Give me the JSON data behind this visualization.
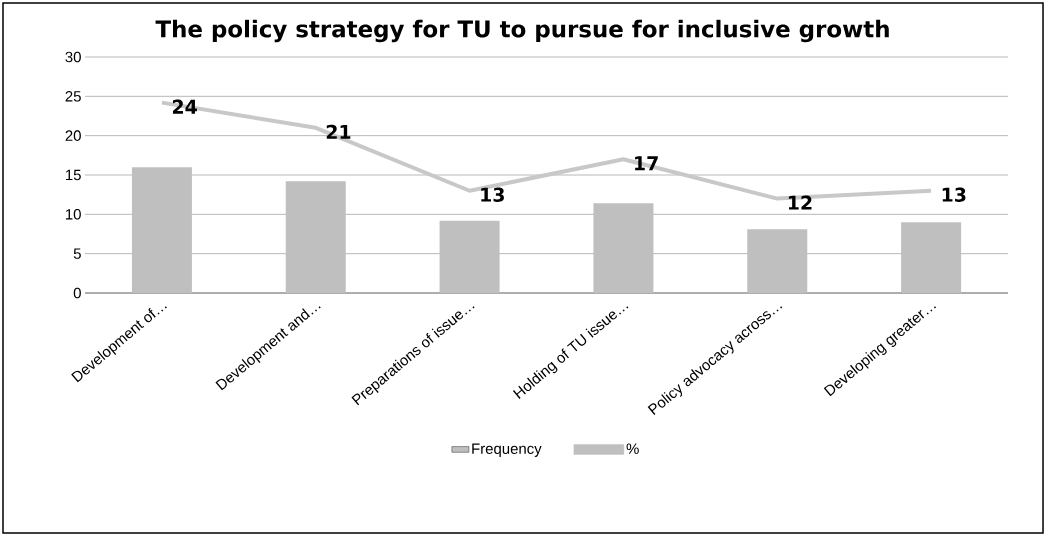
{
  "chart_data": {
    "type": "bar",
    "title": "The policy strategy for TU to pursue for inclusive growth",
    "categories": [
      "Development of…",
      "Development and…",
      "Preparations of issue…",
      "Holding of TU issue…",
      "Policy advocacy across…",
      "Developing greater…"
    ],
    "series": [
      {
        "name": "Frequency",
        "color": "#bfbfbf",
        "values": [
          16,
          14.2,
          9.2,
          11.4,
          8.1,
          9
        ]
      },
      {
        "name": "%",
        "type": "line",
        "color": "#c8c8c8",
        "values": [
          24.2,
          21,
          13,
          17,
          12,
          13
        ],
        "value_labels": [
          "24",
          "21",
          "13",
          "17",
          "12",
          "13"
        ]
      }
    ],
    "ylim": [
      0,
      30
    ],
    "yticks": [
      0,
      5,
      10,
      15,
      20,
      25,
      30
    ],
    "grid": "y",
    "legend": "bottom",
    "marker": "none",
    "line_style": "solid"
  }
}
